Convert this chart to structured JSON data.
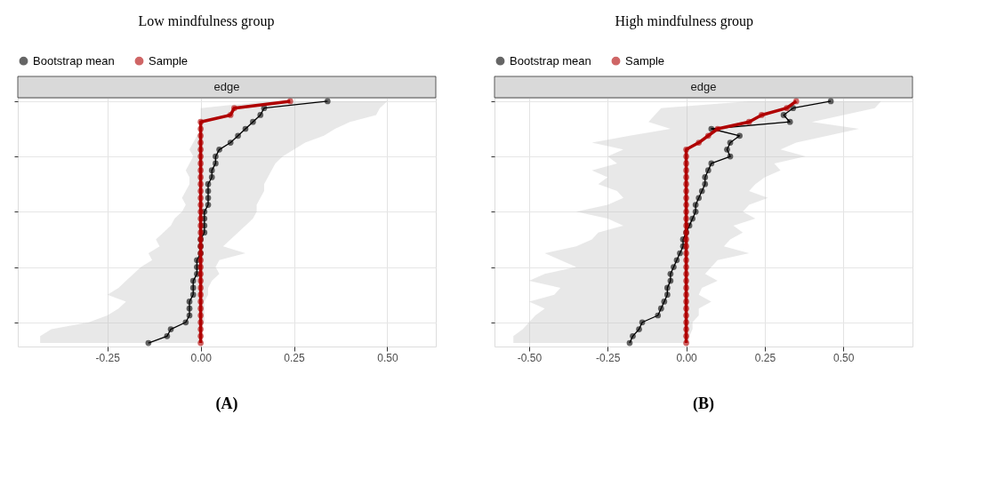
{
  "chart_data": [
    {
      "type": "line",
      "orientation": "horizontal",
      "title": "Low mindfulness group",
      "legend": "top",
      "grid": true,
      "marker": "circle",
      "line_style": "solid",
      "tick_labels": "x",
      "annotations": [
        "edge",
        "(A)"
      ],
      "categories": [
        null,
        null,
        null,
        null,
        null,
        null,
        null,
        null,
        null,
        null,
        null,
        null,
        null,
        null,
        null,
        null,
        null,
        null,
        null,
        null,
        null,
        null,
        null,
        null,
        null,
        null,
        null,
        null,
        null,
        null,
        null,
        null,
        null,
        null,
        null,
        null
      ],
      "xlim": [
        -0.49,
        0.63
      ],
      "xticks": [
        {
          "value": -0.25,
          "label": "-0.25"
        },
        {
          "value": 0,
          "label": "0.00"
        },
        {
          "value": 0.25,
          "label": "0.25"
        },
        {
          "value": 0.5,
          "label": "0.50"
        }
      ],
      "series": [
        {
          "name": "Bootstrap mean",
          "color": "#000000",
          "values": [
            0.34,
            0.17,
            0.16,
            0.14,
            0.12,
            0.1,
            0.08,
            0.05,
            0.04,
            0.04,
            0.03,
            0.03,
            0.02,
            0.02,
            0.02,
            0.02,
            0.01,
            0.01,
            0.01,
            0.01,
            0,
            0,
            0,
            -0.01,
            -0.01,
            -0.01,
            -0.02,
            -0.02,
            -0.02,
            -0.03,
            -0.03,
            -0.03,
            -0.04,
            -0.08,
            -0.09,
            -0.14
          ],
          "upper": [
            0.5,
            0.48,
            0.47,
            0.4,
            0.36,
            0.33,
            0.28,
            0.25,
            0.22,
            0.2,
            0.19,
            0.18,
            0.17,
            0.17,
            0.16,
            0.15,
            0.15,
            0.14,
            0.12,
            0.1,
            0.08,
            0.06,
            0.12,
            0.05,
            0.04,
            0.05,
            0.03,
            0.02,
            0.02,
            0.01,
            0.01,
            0.01,
            0.01,
            0,
            0,
            0
          ],
          "lower": [
            0.18,
            0,
            0,
            0,
            0,
            -0.01,
            -0.02,
            -0.03,
            -0.02,
            -0.03,
            -0.04,
            -0.03,
            -0.03,
            -0.04,
            -0.05,
            -0.04,
            -0.05,
            -0.07,
            -0.08,
            -0.1,
            -0.12,
            -0.11,
            -0.14,
            -0.13,
            -0.16,
            -0.18,
            -0.2,
            -0.22,
            -0.25,
            -0.2,
            -0.22,
            -0.25,
            -0.3,
            -0.4,
            -0.43,
            -0.43
          ]
        },
        {
          "name": "Sample",
          "color": "#b00000",
          "values": [
            0.24,
            0.09,
            0.08,
            0,
            0,
            0,
            0,
            0,
            0,
            0,
            0,
            0,
            0,
            0,
            0,
            0,
            0,
            0,
            0,
            0,
            0,
            0,
            0,
            0,
            0,
            0,
            0,
            0,
            0,
            0,
            0,
            0,
            0,
            0,
            0,
            0
          ]
        }
      ]
    },
    {
      "type": "line",
      "orientation": "horizontal",
      "title": "High mindfulness group",
      "legend": "top",
      "grid": true,
      "marker": "circle",
      "line_style": "solid",
      "tick_labels": "x",
      "annotations": [
        "edge",
        "(B)"
      ],
      "categories": [
        null,
        null,
        null,
        null,
        null,
        null,
        null,
        null,
        null,
        null,
        null,
        null,
        null,
        null,
        null,
        null,
        null,
        null,
        null,
        null,
        null,
        null,
        null,
        null,
        null,
        null,
        null,
        null,
        null,
        null,
        null,
        null,
        null,
        null,
        null,
        null
      ],
      "xlim": [
        -0.61,
        0.72
      ],
      "xticks": [
        {
          "value": -0.5,
          "label": "-0.50"
        },
        {
          "value": -0.25,
          "label": "-0.25"
        },
        {
          "value": 0,
          "label": "0.00"
        },
        {
          "value": 0.25,
          "label": "0.25"
        },
        {
          "value": 0.5,
          "label": "0.50"
        }
      ],
      "series": [
        {
          "name": "Bootstrap mean",
          "color": "#000000",
          "values": [
            0.46,
            0.34,
            0.31,
            0.33,
            0.08,
            0.17,
            0.14,
            0.13,
            0.14,
            0.08,
            0.07,
            0.06,
            0.06,
            0.05,
            0.04,
            0.03,
            0.03,
            0.02,
            0.01,
            0,
            -0.01,
            -0.01,
            -0.02,
            -0.03,
            -0.04,
            -0.05,
            -0.05,
            -0.06,
            -0.06,
            -0.07,
            -0.08,
            -0.09,
            -0.14,
            -0.15,
            -0.17,
            -0.18
          ],
          "upper": [
            0.62,
            0.6,
            0.5,
            0.4,
            0.55,
            0.45,
            0.35,
            0.3,
            0.38,
            0.28,
            0.3,
            0.25,
            0.22,
            0.2,
            0.26,
            0.2,
            0.18,
            0.22,
            0.15,
            0.18,
            0.14,
            0.12,
            0.2,
            0.1,
            0.08,
            0.06,
            0.1,
            0.05,
            0.04,
            0.08,
            0.04,
            0.04,
            0.02,
            0.02,
            0.01,
            0.01
          ],
          "lower": [
            0.2,
            -0.08,
            -0.1,
            -0.12,
            -0.05,
            -0.18,
            -0.3,
            -0.2,
            -0.25,
            -0.22,
            -0.3,
            -0.25,
            -0.28,
            -0.22,
            -0.2,
            -0.25,
            -0.35,
            -0.25,
            -0.2,
            -0.28,
            -0.3,
            -0.35,
            -0.45,
            -0.4,
            -0.35,
            -0.45,
            -0.5,
            -0.4,
            -0.42,
            -0.5,
            -0.45,
            -0.48,
            -0.5,
            -0.52,
            -0.55,
            -0.55
          ]
        },
        {
          "name": "Sample",
          "color": "#b00000",
          "values": [
            0.35,
            0.32,
            0.24,
            0.2,
            0.1,
            0.07,
            0.04,
            0,
            0,
            0,
            0,
            0,
            0,
            0,
            0,
            0,
            0,
            0,
            0,
            0,
            0,
            0,
            0,
            0,
            0,
            0,
            0,
            0,
            0,
            0,
            0,
            0,
            0,
            0,
            0,
            0
          ]
        }
      ]
    }
  ]
}
